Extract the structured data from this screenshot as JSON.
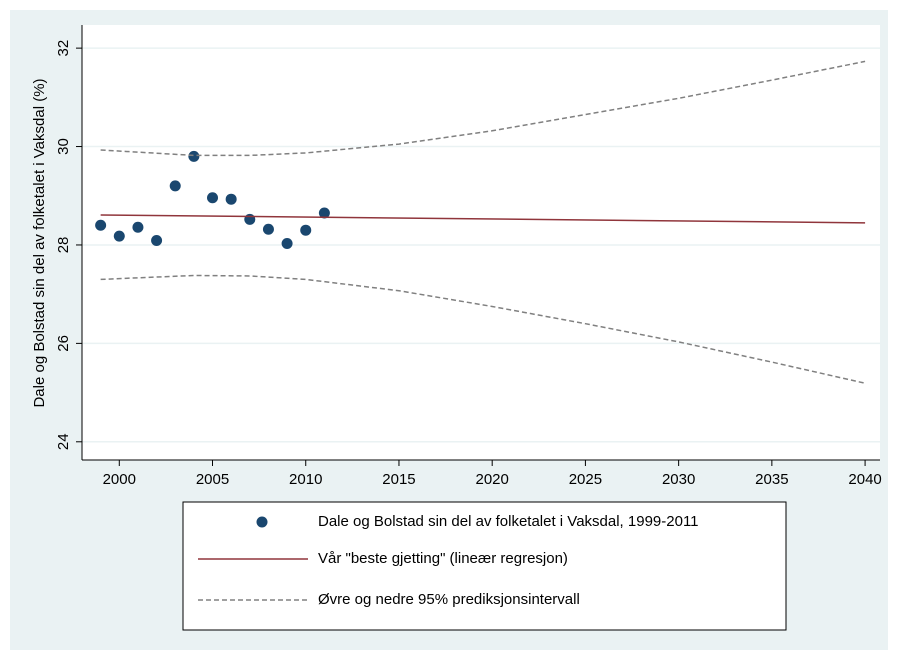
{
  "chart_data": {
    "type": "line",
    "y_label": "Dale og Bolstad sin del av folketalet i Vaksdal (%)",
    "xlim": [
      1998,
      2040.8
    ],
    "ylim": [
      23.63,
      32.47
    ],
    "xticks": [
      2000,
      2005,
      2010,
      2015,
      2020,
      2025,
      2030,
      2035,
      2040
    ],
    "yticks": [
      24,
      26,
      28,
      30,
      32
    ],
    "grid": true,
    "series": [
      {
        "name": "Dale og Bolstad sin del av folketalet i Vaksdal, 1999-2011",
        "type": "scatter",
        "color": "#1a476f",
        "x": [
          1999,
          2000,
          2001,
          2002,
          2003,
          2004,
          2005,
          2006,
          2007,
          2008,
          2009,
          2010,
          2011
        ],
        "values": [
          28.4,
          28.18,
          28.36,
          28.09,
          29.2,
          29.8,
          28.96,
          28.93,
          28.52,
          28.32,
          28.03,
          28.3,
          28.65
        ]
      },
      {
        "name": "Vår \"beste gjetting\" (lineær regresjon)",
        "type": "line",
        "color": "#90353b",
        "x": [
          1999,
          2040
        ],
        "values": [
          28.61,
          28.45
        ]
      },
      {
        "name": "Øvre og nedre 95% prediksjonsintervall",
        "type": "band",
        "color": "#808080",
        "x": [
          1999,
          2004,
          2007,
          2010,
          2015,
          2020,
          2025,
          2030,
          2035,
          2040
        ],
        "upper": [
          29.93,
          29.82,
          29.82,
          29.87,
          30.05,
          30.32,
          30.65,
          30.98,
          31.35,
          31.73
        ],
        "lower": [
          27.3,
          27.38,
          27.37,
          27.3,
          27.07,
          26.75,
          26.4,
          26.03,
          25.62,
          25.19
        ]
      }
    ]
  }
}
